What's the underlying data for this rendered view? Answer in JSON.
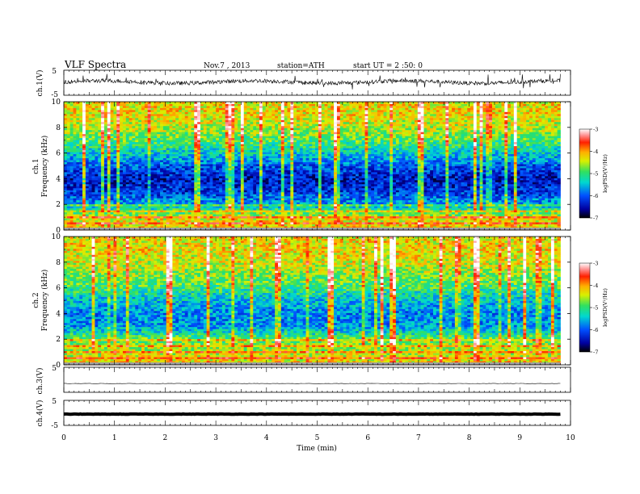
{
  "header": {
    "title": "VLF  Spectra",
    "date": "Nov.7  , 2013",
    "station": "station=ATH",
    "start": "start  UT  =   2  :50: 0"
  },
  "chart_data": [
    {
      "type": "line",
      "panel": "ch1-waveform",
      "ylabel": "ch.1(V)",
      "ylim": [
        -5,
        5
      ],
      "ytick_labels": [
        "5",
        "-5"
      ],
      "x_range_min": [
        0,
        9.8
      ],
      "description_values": "noisy waveform centered near +0.3 V, spikes up to ~±3 V"
    },
    {
      "type": "heatmap",
      "panel": "ch1-spectrogram",
      "ylabel_channel": "ch.1",
      "ylabel": "Frequency  (kHz)",
      "ylim": [
        0,
        10
      ],
      "ytick_labels": [
        "0",
        "2",
        "4",
        "6",
        "8",
        "10"
      ],
      "x_range_min": [
        0,
        9.8
      ],
      "colorbar": {
        "label": "logPSD(V²/Hz)",
        "range": [
          -7,
          -3
        ],
        "tick_labels": [
          "-3",
          "-4",
          "-5",
          "-6",
          "-7"
        ]
      },
      "profile_kHz": [
        [
          0,
          -4.2
        ],
        [
          1,
          -4.4
        ],
        [
          2,
          -5.6
        ],
        [
          3,
          -6.2
        ],
        [
          4,
          -6.4
        ],
        [
          5,
          -6.0
        ],
        [
          6,
          -5.4
        ],
        [
          7,
          -4.9
        ],
        [
          8,
          -4.5
        ],
        [
          9,
          -4.3
        ],
        [
          10,
          -4.3
        ]
      ]
    },
    {
      "type": "heatmap",
      "panel": "ch2-spectrogram",
      "ylabel_channel": "ch.2",
      "ylabel": "Frequency  (kHz)",
      "ylim": [
        0,
        10
      ],
      "ytick_labels": [
        "0",
        "2",
        "4",
        "6",
        "8",
        "10"
      ],
      "x_range_min": [
        0,
        9.8
      ],
      "colorbar": {
        "label": "logPSD(V²/Hz)",
        "range": [
          -7,
          -3
        ],
        "tick_labels": [
          "-3",
          "-4",
          "-5",
          "-6",
          "-7"
        ]
      },
      "profile_kHz": [
        [
          0,
          -4.2
        ],
        [
          1,
          -4.5
        ],
        [
          2,
          -4.8
        ],
        [
          3,
          -5.7
        ],
        [
          4,
          -5.8
        ],
        [
          5,
          -5.5
        ],
        [
          6,
          -5.0
        ],
        [
          7,
          -4.7
        ],
        [
          8,
          -4.4
        ],
        [
          9,
          -4.3
        ],
        [
          10,
          -4.3
        ]
      ]
    },
    {
      "type": "line",
      "panel": "ch3-waveform",
      "ylabel": "ch.3(V)",
      "ylim": [
        -5,
        5
      ],
      "ytick_labels": [
        "5"
      ],
      "x_range_min": [
        0,
        9.8
      ],
      "level_V": -1.5
    },
    {
      "type": "line",
      "panel": "ch4-waveform",
      "ylabel": "ch.4(V)",
      "ylim": [
        -5,
        5
      ],
      "ytick_labels": [
        "5",
        "-5"
      ],
      "x_range_min": [
        0,
        9.8
      ],
      "level_V": -0.5
    }
  ],
  "xaxis": {
    "label": "Time  (min)",
    "tick_labels": [
      "0",
      "1",
      "2",
      "3",
      "4",
      "5",
      "6",
      "7",
      "8",
      "9",
      "10"
    ]
  }
}
